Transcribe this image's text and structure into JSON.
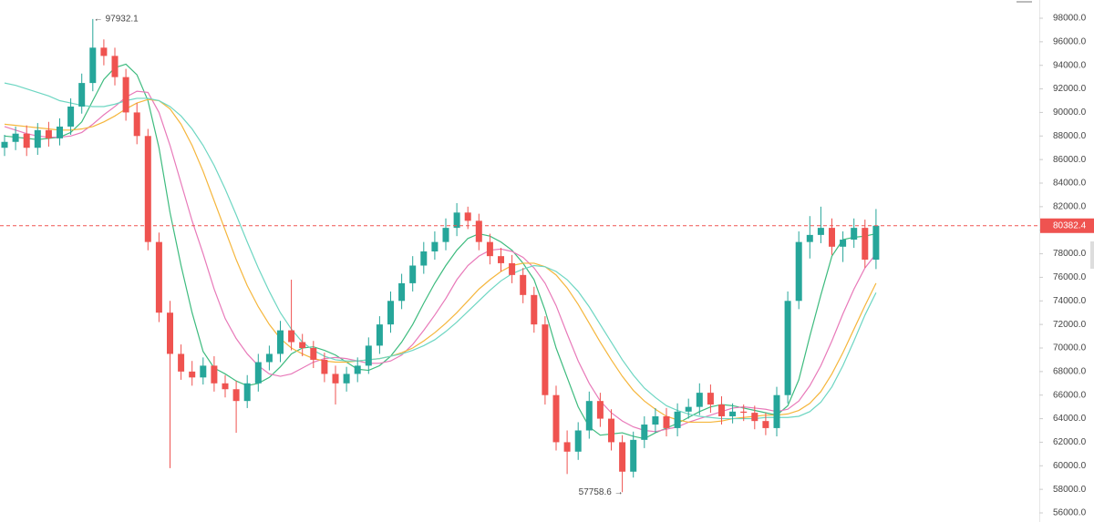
{
  "chart_data": {
    "type": "candlestick",
    "open": [
      87000,
      87500,
      88200,
      87000,
      88500,
      87800,
      88800,
      90500,
      92500,
      95500,
      94800,
      93000,
      90000,
      88000,
      79000,
      73000,
      69500,
      68000,
      67500,
      68500,
      67000,
      66500,
      65500,
      67000,
      68800,
      69500,
      71500,
      70500,
      70000,
      69000,
      67800,
      67000,
      67800,
      68500,
      70200,
      72000,
      74000,
      75500,
      77000,
      78200,
      79000,
      80200,
      81500,
      80800,
      79000,
      77800,
      77200,
      76200,
      74500,
      72000,
      66000,
      62000,
      61200,
      63000,
      65500,
      64000,
      62000,
      59500,
      62200,
      63500,
      64200,
      63200,
      64600,
      65000,
      66200,
      65200,
      64200,
      64600,
      64500,
      63800,
      63200,
      66000,
      74000,
      79000,
      79600,
      80200,
      78600,
      79200,
      80200,
      77500
    ],
    "high": [
      88100,
      88800,
      88900,
      89100,
      89200,
      89500,
      91200,
      93300,
      97932.1,
      96200,
      95500,
      93700,
      90800,
      88600,
      79800,
      74000,
      70300,
      68900,
      69200,
      69300,
      67700,
      67200,
      67700,
      69500,
      70200,
      72300,
      75800,
      71200,
      70600,
      69600,
      68500,
      68400,
      69200,
      70900,
      72700,
      74800,
      76300,
      77800,
      79000,
      79900,
      81000,
      82300,
      82000,
      81400,
      79700,
      78500,
      77900,
      76800,
      75200,
      72700,
      66800,
      63000,
      63700,
      66300,
      66200,
      64800,
      62600,
      62900,
      64200,
      64900,
      64900,
      65300,
      65700,
      67000,
      66900,
      65900,
      65300,
      65200,
      65100,
      64500,
      66700,
      74800,
      79900,
      81200,
      82000,
      81000,
      79900,
      81000,
      80900,
      81800
    ],
    "low": [
      86300,
      86800,
      86300,
      86400,
      87100,
      87200,
      88100,
      89900,
      91800,
      94000,
      92300,
      89300,
      87300,
      78300,
      72200,
      59800,
      67300,
      66800,
      66900,
      66300,
      65800,
      62800,
      64900,
      66300,
      68100,
      68800,
      69800,
      69300,
      68300,
      67100,
      65200,
      66300,
      67100,
      67800,
      69500,
      71300,
      73300,
      74800,
      76300,
      77500,
      78300,
      79500,
      80100,
      78300,
      77100,
      76500,
      75500,
      73800,
      71300,
      65200,
      61300,
      59300,
      60500,
      62300,
      63300,
      61300,
      57758.6,
      59000,
      61500,
      62800,
      62500,
      62500,
      64000,
      64300,
      64500,
      63500,
      63600,
      63800,
      63100,
      62600,
      62500,
      65300,
      73300,
      77600,
      78900,
      77900,
      77300,
      78500,
      76800,
      76700
    ],
    "close": [
      87500,
      88200,
      87000,
      88500,
      87800,
      88800,
      90500,
      92500,
      95500,
      94800,
      93000,
      90000,
      88000,
      79000,
      73000,
      69500,
      68000,
      67500,
      68500,
      67000,
      66500,
      65500,
      67000,
      68800,
      69500,
      71500,
      70500,
      70000,
      69000,
      67800,
      67000,
      67800,
      68500,
      70200,
      72000,
      74000,
      75500,
      77000,
      78200,
      79000,
      80200,
      81500,
      80800,
      79000,
      77800,
      77200,
      76200,
      74500,
      72000,
      66000,
      62000,
      61200,
      63000,
      65500,
      64000,
      62000,
      59500,
      62200,
      63500,
      64200,
      63200,
      64600,
      65000,
      66200,
      65200,
      64200,
      64600,
      64500,
      63800,
      63200,
      66000,
      74000,
      79000,
      79600,
      80200,
      78600,
      79200,
      80200,
      77500,
      80382.4
    ],
    "up_color": "#26a69a",
    "down_color": "#ef5350",
    "ma": [
      {
        "color": "#3dbb7e",
        "values": [
          88000,
          87900,
          87800,
          87700,
          87800,
          87900,
          88300,
          89200,
          91000,
          92800,
          93800,
          94100,
          93200,
          91000,
          87000,
          81500,
          77000,
          73000,
          69700,
          68300,
          67800,
          67200,
          66800,
          67000,
          67500,
          68400,
          69500,
          70000,
          70100,
          69800,
          69400,
          68800,
          68200,
          68100,
          68500,
          69300,
          70500,
          72000,
          73800,
          75500,
          77000,
          78300,
          79300,
          79700,
          79500,
          79000,
          78300,
          77200,
          75800,
          73200,
          70000,
          67500,
          65000,
          63300,
          62600,
          62700,
          62800,
          62500,
          62300,
          62800,
          63200,
          63600,
          64100,
          64600,
          65000,
          65200,
          65100,
          64900,
          64700,
          64500,
          64300,
          65100,
          67300,
          71000,
          74500,
          77800,
          79200,
          79400,
          79500,
          79700
        ]
      },
      {
        "color": "#e879b9",
        "values": [
          88800,
          88500,
          88200,
          88000,
          87900,
          87900,
          88000,
          88300,
          89000,
          89800,
          90500,
          91300,
          91800,
          91700,
          90000,
          87200,
          84000,
          80800,
          78000,
          75000,
          72500,
          70800,
          69500,
          68500,
          67800,
          67600,
          67800,
          68300,
          68800,
          69100,
          69200,
          69100,
          68900,
          68700,
          68700,
          68900,
          69400,
          70300,
          71500,
          72800,
          74200,
          75800,
          77000,
          77800,
          78300,
          78400,
          78200,
          77700,
          76800,
          75500,
          73600,
          71200,
          68900,
          67000,
          65500,
          64500,
          63800,
          63300,
          63000,
          62900,
          63100,
          63300,
          63700,
          64000,
          64300,
          64600,
          64900,
          65000,
          64900,
          64800,
          64600,
          64800,
          65500,
          66800,
          68500,
          70600,
          72900,
          75000,
          76800,
          78000
        ]
      },
      {
        "color": "#f5b63c",
        "values": [
          89000,
          88900,
          88800,
          88700,
          88600,
          88500,
          88500,
          88600,
          88800,
          89200,
          89700,
          90300,
          90800,
          91100,
          91000,
          90300,
          89000,
          87200,
          85000,
          82500,
          80000,
          77500,
          75300,
          73500,
          72000,
          70800,
          70000,
          69500,
          69100,
          68900,
          68800,
          68800,
          68900,
          69000,
          69100,
          69300,
          69600,
          70000,
          70600,
          71300,
          72100,
          73000,
          74000,
          75000,
          75800,
          76500,
          77000,
          77200,
          77200,
          76900,
          76200,
          75100,
          73700,
          72100,
          70500,
          69000,
          67600,
          66400,
          65500,
          64800,
          64200,
          63900,
          63700,
          63700,
          63700,
          63800,
          64000,
          64100,
          64200,
          64300,
          64300,
          64400,
          64700,
          65300,
          66300,
          67800,
          69600,
          71600,
          73600,
          75500
        ]
      },
      {
        "color": "#6dd6c2",
        "values": [
          92500,
          92300,
          92000,
          91700,
          91400,
          91000,
          90800,
          90600,
          90500,
          90500,
          90700,
          91000,
          91200,
          91200,
          91000,
          90500,
          89700,
          88600,
          87200,
          85500,
          83500,
          81300,
          79000,
          76800,
          74800,
          73000,
          71600,
          70500,
          69800,
          69300,
          69000,
          68900,
          68900,
          69000,
          69100,
          69300,
          69500,
          69800,
          70200,
          70700,
          71400,
          72200,
          73100,
          74000,
          74900,
          75700,
          76300,
          76700,
          77000,
          76900,
          76500,
          75800,
          74800,
          73500,
          72000,
          70500,
          69000,
          67700,
          66600,
          65800,
          65100,
          64700,
          64400,
          64200,
          64100,
          64000,
          64000,
          64000,
          64000,
          64100,
          64100,
          64100,
          64200,
          64600,
          65400,
          66700,
          68500,
          70600,
          72800,
          74700
        ]
      }
    ],
    "ylim": [
      56000,
      98000
    ],
    "yticks": [
      {
        "value": 56000,
        "label": "56000.0"
      },
      {
        "value": 58000,
        "label": "58000.0"
      },
      {
        "value": 60000,
        "label": "60000.0"
      },
      {
        "value": 62000,
        "label": "62000.0"
      },
      {
        "value": 64000,
        "label": "64000.0"
      },
      {
        "value": 66000,
        "label": "66000.0"
      },
      {
        "value": 68000,
        "label": "68000.0"
      },
      {
        "value": 70000,
        "label": "70000.0"
      },
      {
        "value": 72000,
        "label": "72000.0"
      },
      {
        "value": 74000,
        "label": "74000.0"
      },
      {
        "value": 76000,
        "label": "76000.0"
      },
      {
        "value": 78000,
        "label": "78000.0"
      },
      {
        "value": 80000,
        "label": "80000.0"
      },
      {
        "value": 82000,
        "label": "82000.0"
      },
      {
        "value": 84000,
        "label": "84000.0"
      },
      {
        "value": 86000,
        "label": "86000.0"
      },
      {
        "value": 88000,
        "label": "88000.0"
      },
      {
        "value": 90000,
        "label": "90000.0"
      },
      {
        "value": 92000,
        "label": "92000.0"
      },
      {
        "value": 94000,
        "label": "94000.0"
      },
      {
        "value": 96000,
        "label": "96000.0"
      },
      {
        "value": 98000,
        "label": "98000.0"
      }
    ],
    "last_price": {
      "value": 80382.4,
      "label": "80382.4",
      "color": "#ef5350"
    },
    "annotations": [
      {
        "text": "← 97932.1"
      },
      {
        "text": "57758.6 →"
      }
    ]
  }
}
